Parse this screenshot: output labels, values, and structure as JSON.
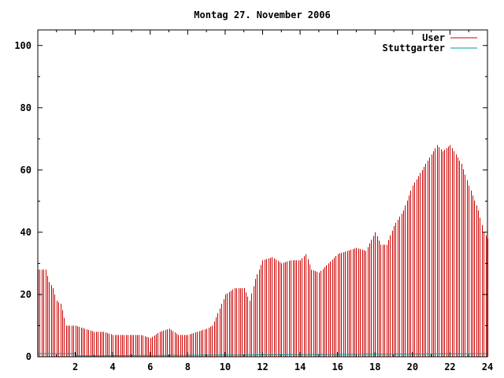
{
  "chart_data": {
    "type": "bar",
    "title": "Montag 27. November 2006",
    "xlabel": "",
    "ylabel": "",
    "xlim": [
      0,
      24
    ],
    "ylim": [
      0,
      105
    ],
    "x_ticks": [
      "2",
      "4",
      "6",
      "8",
      "10",
      "12",
      "14",
      "16",
      "18",
      "20",
      "22",
      "24"
    ],
    "y_ticks": [
      "0",
      "20",
      "40",
      "60",
      "80",
      "100"
    ],
    "grid": false,
    "legend_position": "top-right",
    "series": [
      {
        "name": "User",
        "color": "#cc0000",
        "anchors_x": [
          0,
          0.4,
          0.6,
          0.8,
          1.0,
          1.2,
          1.3,
          1.5,
          2.0,
          2.5,
          3.0,
          3.5,
          4.0,
          5.0,
          5.5,
          6.0,
          6.5,
          7.0,
          7.5,
          8.0,
          8.5,
          9.0,
          9.3,
          9.6,
          10.0,
          10.5,
          11.0,
          11.3,
          11.6,
          12.0,
          12.5,
          13.0,
          13.5,
          14.0,
          14.3,
          14.6,
          15.0,
          15.5,
          16.0,
          16.5,
          17.0,
          17.5,
          18.0,
          18.3,
          18.6,
          19.0,
          19.5,
          20.0,
          20.5,
          21.0,
          21.3,
          21.6,
          22.0,
          22.3,
          22.6,
          23.0,
          23.5,
          23.8,
          24.0
        ],
        "anchors_y": [
          28,
          28,
          24,
          22,
          18,
          17,
          15,
          10,
          10,
          9,
          8,
          8,
          7,
          7,
          7,
          6,
          8,
          9,
          7,
          7,
          8,
          9,
          10,
          14,
          20,
          22,
          22,
          18,
          25,
          31,
          32,
          30,
          31,
          31,
          33,
          28,
          27,
          30,
          33,
          34,
          35,
          34,
          40,
          36,
          36,
          42,
          47,
          55,
          60,
          65,
          68,
          66,
          68,
          65,
          62,
          55,
          47,
          40,
          38
        ]
      },
      {
        "name": "Stuttgarter",
        "color": "#009999",
        "anchors_x": [
          0,
          2,
          2.01,
          11,
          24
        ],
        "anchors_y": [
          1,
          1,
          0.3,
          0.6,
          1
        ]
      }
    ]
  }
}
